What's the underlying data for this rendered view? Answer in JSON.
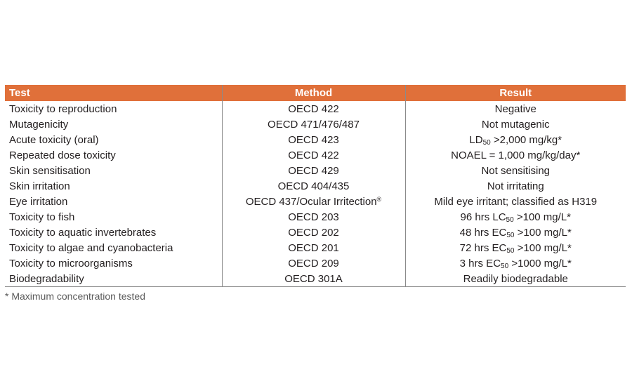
{
  "table": {
    "headers": [
      "Test",
      "Method",
      "Result"
    ],
    "rows": [
      {
        "test": "Toxicity to reproduction",
        "method": "OECD 422",
        "result": [
          "Negative"
        ]
      },
      {
        "test": "Mutagenicity",
        "method": "OECD 471/476/487",
        "result": [
          "Not mutagenic"
        ]
      },
      {
        "test": "Acute toxicity (oral)",
        "method": "OECD 423",
        "result": [
          "LD",
          "50",
          " >2,000 mg/kg*"
        ]
      },
      {
        "test": "Repeated dose toxicity",
        "method": "OECD 422",
        "result": [
          "NOAEL = 1,000 mg/kg/day*"
        ]
      },
      {
        "test": "Skin sensitisation",
        "method": "OECD 429",
        "result": [
          "Not sensitising"
        ]
      },
      {
        "test": "Skin irritation",
        "method": "OECD 404/435",
        "result": [
          "Not irritating"
        ]
      },
      {
        "test": "Eye irritation",
        "method": "OECD 437/Ocular Irritection",
        "method_sup": "®",
        "result": [
          "Mild eye irritant; classified as H319"
        ]
      },
      {
        "test": "Toxicity to fish",
        "method": "OECD 203",
        "result": [
          "96 hrs LC",
          "50",
          " >100 mg/L*"
        ]
      },
      {
        "test": "Toxicity to aquatic invertebrates",
        "method": "OECD 202",
        "result": [
          "48 hrs EC",
          "50",
          " >100 mg/L*"
        ]
      },
      {
        "test": "Toxicity to algae and cyanobacteria",
        "method": "OECD 201",
        "result": [
          "72 hrs EC",
          "50",
          " >100 mg/L*"
        ]
      },
      {
        "test": "Toxicity to microorganisms",
        "method": "OECD 209",
        "result": [
          "3 hrs EC",
          "50",
          " >1000 mg/L*"
        ]
      },
      {
        "test": "Biodegradability",
        "method": "OECD 301A",
        "result": [
          "Readily biodegradable"
        ]
      }
    ]
  },
  "footnote": "* Maximum concentration tested",
  "colors": {
    "header_bg": "#e0703a",
    "header_text": "#ffffff",
    "rule": "#8a8a8a",
    "text": "#231f20"
  }
}
